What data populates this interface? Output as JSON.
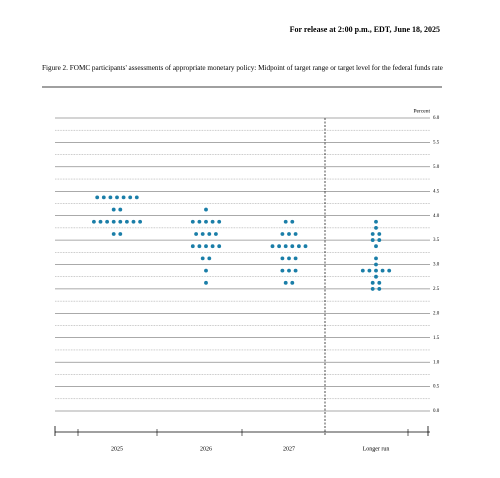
{
  "header": "For release at 2:00 p.m., EDT, June 18, 2025",
  "chart_data": {
    "type": "dot",
    "title": "Figure 2.  FOMC participants' assessments of appropriate monetary policy:  Midpoint of target range or target level for the federal funds rate",
    "y_label": "Percent",
    "categories": [
      "2025",
      "2026",
      "2027",
      "Longer run"
    ],
    "values": [
      [
        4.375,
        4.375,
        4.375,
        4.375,
        4.375,
        4.375,
        4.375,
        4.125,
        4.125,
        3.875,
        3.875,
        3.875,
        3.875,
        3.875,
        3.875,
        3.875,
        3.875,
        3.625,
        3.625
      ],
      [
        4.125,
        3.875,
        3.875,
        3.875,
        3.875,
        3.875,
        3.625,
        3.625,
        3.625,
        3.625,
        3.375,
        3.375,
        3.375,
        3.375,
        3.375,
        3.125,
        3.125,
        2.875,
        2.625
      ],
      [
        3.875,
        3.875,
        3.625,
        3.625,
        3.625,
        3.375,
        3.375,
        3.375,
        3.375,
        3.375,
        3.375,
        3.125,
        3.125,
        3.125,
        2.875,
        2.875,
        2.875,
        2.625,
        2.625
      ],
      [
        3.875,
        3.75,
        3.625,
        3.625,
        3.5,
        3.5,
        3.375,
        3.125,
        3.0,
        2.875,
        2.875,
        2.875,
        2.875,
        2.875,
        2.75,
        2.625,
        2.625,
        2.5,
        2.5
      ]
    ],
    "color": "#1a7ea8",
    "ylim": [
      0,
      6
    ],
    "yticks": [
      {
        "value": 0,
        "label": "0.0"
      },
      {
        "value": 0.5,
        "label": "0.5"
      },
      {
        "value": 1,
        "label": "1.0"
      },
      {
        "value": 1.5,
        "label": "1.5"
      },
      {
        "value": 2,
        "label": "2.0"
      },
      {
        "value": 2.5,
        "label": "2.5"
      },
      {
        "value": 3,
        "label": "3.0"
      },
      {
        "value": 3.5,
        "label": "3.5"
      },
      {
        "value": 4,
        "label": "4.0"
      },
      {
        "value": 4.5,
        "label": "4.5"
      },
      {
        "value": 5,
        "label": "5.0"
      },
      {
        "value": 5.5,
        "label": "5.5"
      },
      {
        "value": 6,
        "label": "6.0"
      }
    ],
    "minor_yticks": [
      0.25,
      0.75,
      1.25,
      1.75,
      2.25,
      2.75,
      3.25,
      3.75,
      4.25,
      4.75,
      5.25,
      5.75
    ],
    "grid": true
  }
}
